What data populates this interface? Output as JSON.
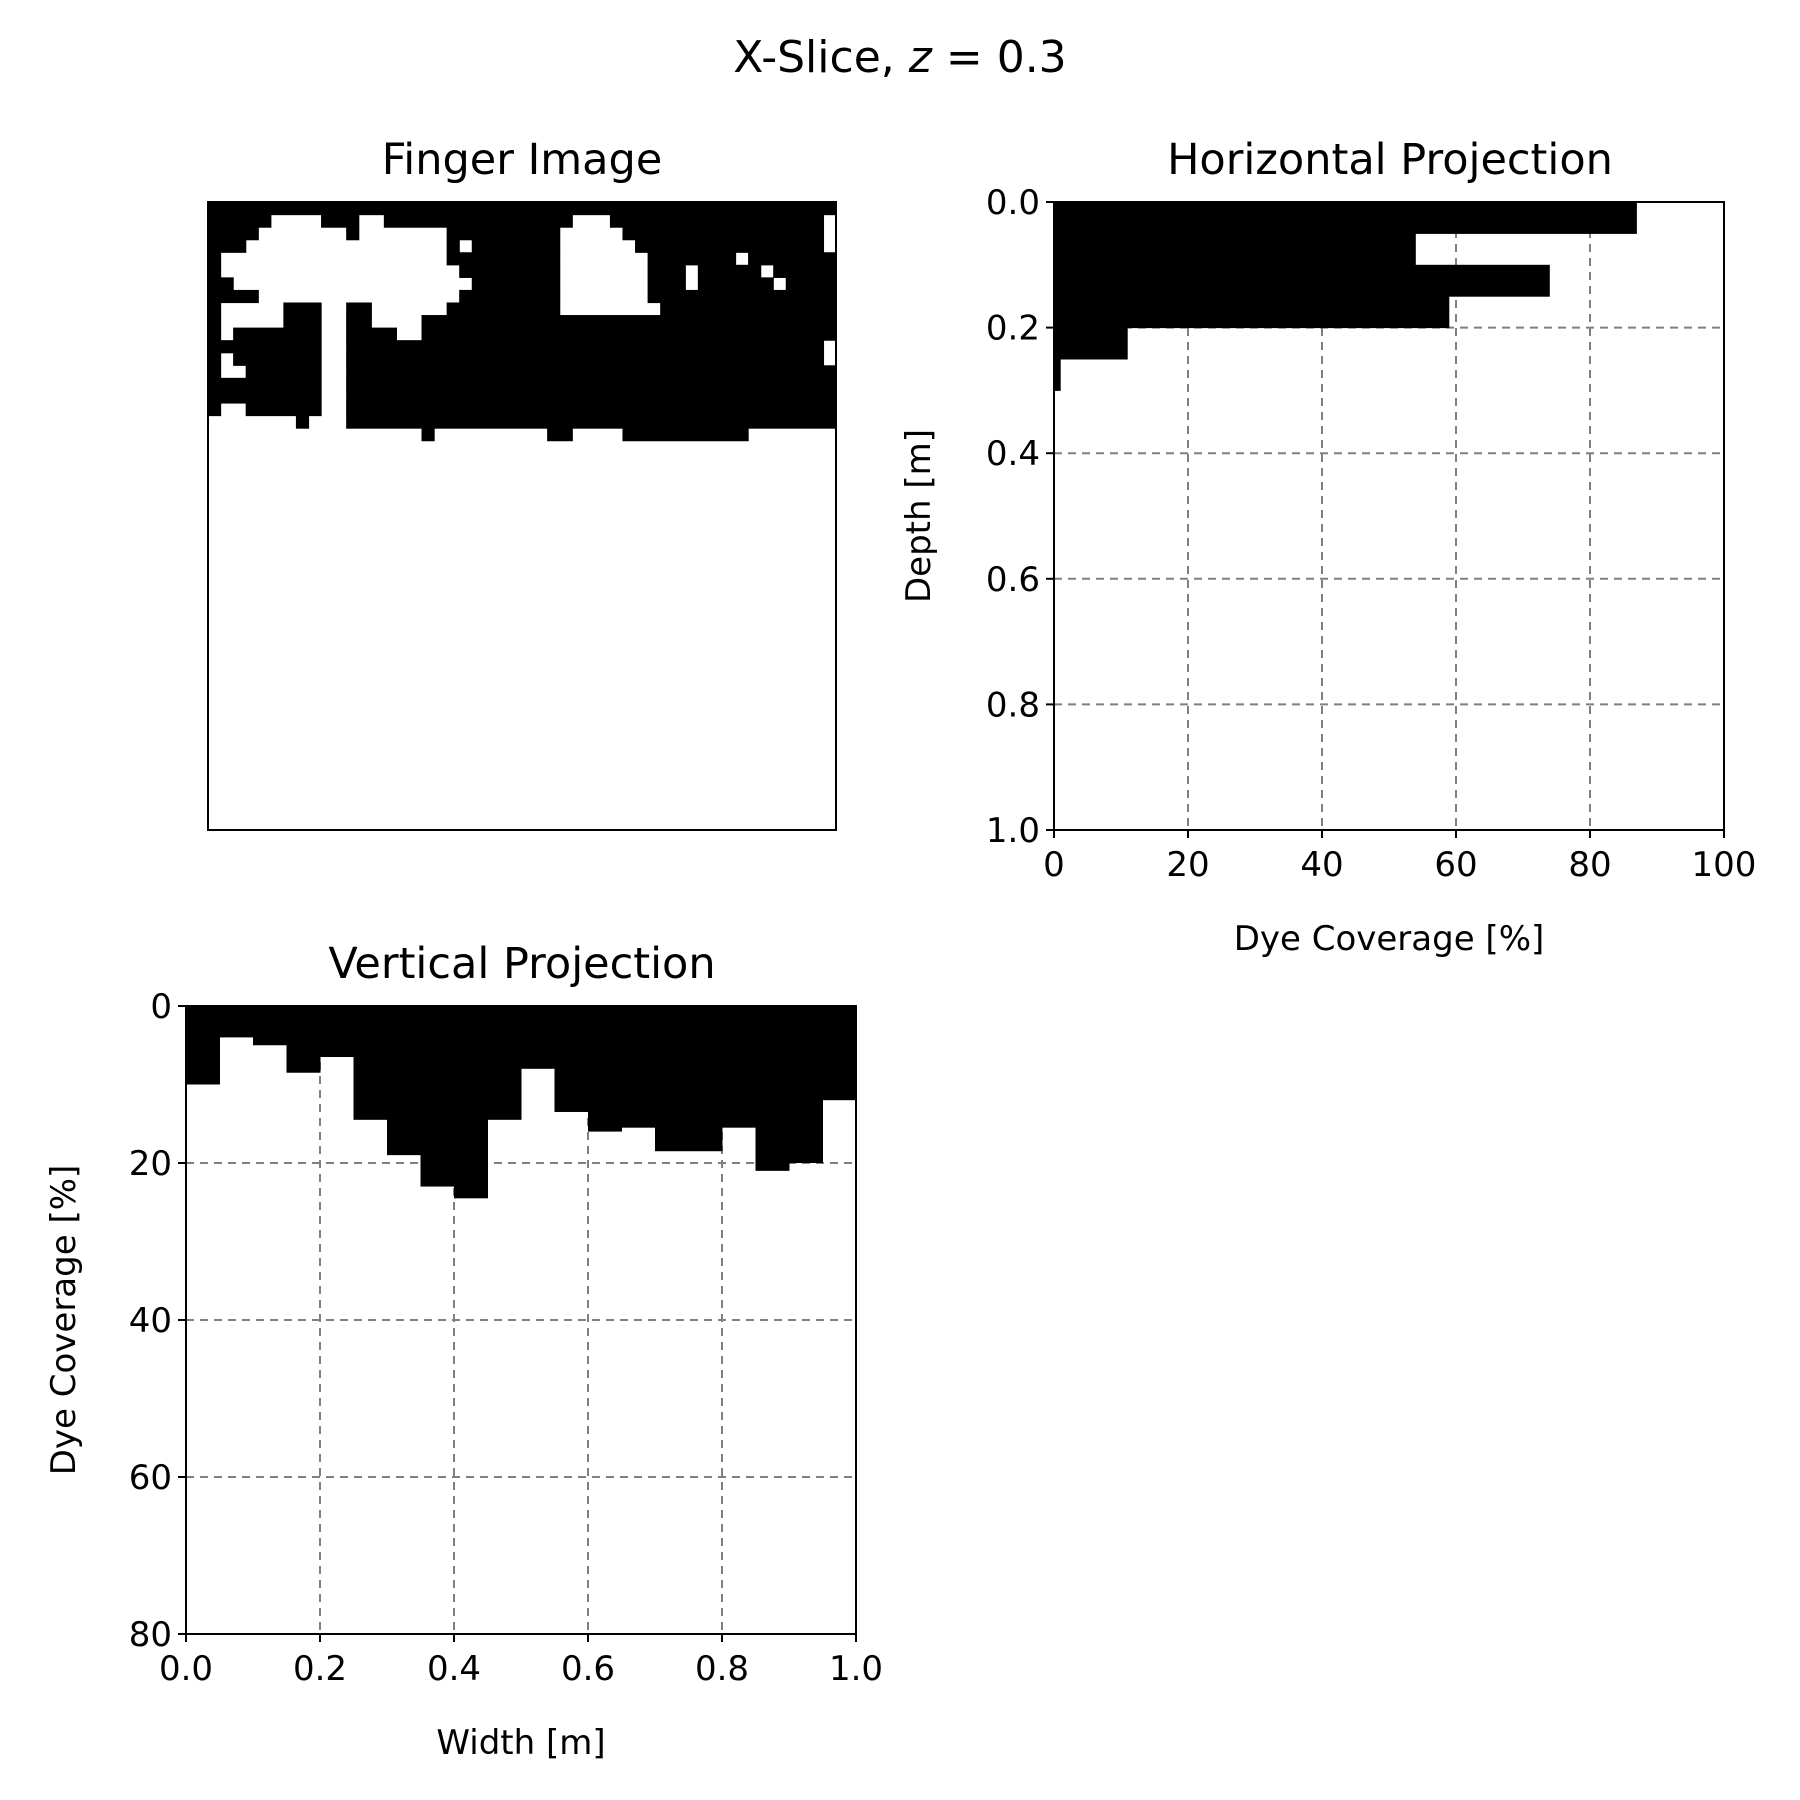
{
  "figure": {
    "suptitle_prefix": "X-Slice, ",
    "suptitle_var": "z",
    "suptitle_suffix": " = 0.3"
  },
  "chart_data": [
    {
      "type": "heatmap",
      "title": "Finger Image",
      "colors": {
        "dye": "#000000",
        "background": "#ffffff"
      },
      "axes_visible": false,
      "grid_cols": 50,
      "grid_rows": 50,
      "dye_mask_top_rows": [
        "11111111111111111111111111111111111111111111111111",
        "11111000011100111111111111111000111111111111111110",
        "11110000000100000001111111110000011111111111111110",
        "11100000000000000001011111110000001111111111111110",
        "10000000000000000001111111110000000111111101111111",
        "10000000000000000000111111110000000111011111011111",
        "11000000000000000000011111110000000111011111101111",
        "11110000000000000000111111110000000111111111111111",
        "10000011100110000001111111110000000011111111111111",
        "10000011100110000111111111111111111111111111111111",
        "10111111100111100111111111111111111111111111111111",
        "11111111100111111111111111111111111111111111111110",
        "10111111100111111111111111111111111111111111111110",
        "10011111100111111111111111111111111111111111111111",
        "11111111100111111111111111111111111111111111111111",
        "11111111100111111111111111111111111111111111111111",
        "10011111100111111111111111111111111111111111111111",
        "00000001000111111111111111111111111111111111111111",
        "00000000000000000100000000011000011111111110000000",
        "00000000000000000000000000000000000000000000000000",
        "00000000000000000000000000000000000000000000000000",
        "00000000000000000000000000000000000000000000000000",
        "00000000000000000000000000000000000000000000000000",
        "00000000000000000000000000000000000000000000000000",
        "00000000000000000000000000000000000000000000000000",
        "00000000000000000000000000000000000000000000000000"
      ]
    },
    {
      "type": "bar",
      "orientation": "horizontal",
      "title": "Horizontal Projection",
      "xlabel": "Dye Coverage [%]",
      "ylabel": "Depth [m]",
      "xlim": [
        0,
        100
      ],
      "ylim": [
        1.0,
        0.0
      ],
      "y_inverted": true,
      "xticks": [
        "0",
        "20",
        "40",
        "60",
        "80",
        "100"
      ],
      "yticks": [
        "0.0",
        "0.2",
        "0.4",
        "0.6",
        "0.8",
        "1.0"
      ],
      "grid": true,
      "bar_color": "#000000",
      "bars": [
        {
          "depth_start": 0.0,
          "depth_end": 0.05,
          "value": 87
        },
        {
          "depth_start": 0.05,
          "depth_end": 0.1,
          "value": 54
        },
        {
          "depth_start": 0.1,
          "depth_end": 0.15,
          "value": 74
        },
        {
          "depth_start": 0.15,
          "depth_end": 0.2,
          "value": 59
        },
        {
          "depth_start": 0.2,
          "depth_end": 0.25,
          "value": 11
        },
        {
          "depth_start": 0.25,
          "depth_end": 0.3,
          "value": 1
        }
      ]
    },
    {
      "type": "bar",
      "orientation": "vertical",
      "title": "Vertical Projection",
      "xlabel": "Width [m]",
      "ylabel": "Dye Coverage [%]",
      "xlim": [
        0.0,
        1.0
      ],
      "ylim": [
        80,
        0
      ],
      "y_inverted": true,
      "xticks": [
        "0.0",
        "0.2",
        "0.4",
        "0.6",
        "0.8",
        "1.0"
      ],
      "yticks": [
        "0",
        "20",
        "40",
        "60",
        "80"
      ],
      "grid": true,
      "bar_color": "#000000",
      "bars": [
        {
          "x_start": 0.0,
          "x_end": 0.05,
          "value": 10
        },
        {
          "x_start": 0.05,
          "x_end": 0.1,
          "value": 4
        },
        {
          "x_start": 0.1,
          "x_end": 0.15,
          "value": 5
        },
        {
          "x_start": 0.15,
          "x_end": 0.2,
          "value": 8.5
        },
        {
          "x_start": 0.2,
          "x_end": 0.25,
          "value": 6.5
        },
        {
          "x_start": 0.25,
          "x_end": 0.3,
          "value": 14.5
        },
        {
          "x_start": 0.3,
          "x_end": 0.35,
          "value": 19
        },
        {
          "x_start": 0.35,
          "x_end": 0.4,
          "value": 23
        },
        {
          "x_start": 0.4,
          "x_end": 0.45,
          "value": 24.5
        },
        {
          "x_start": 0.45,
          "x_end": 0.5,
          "value": 14.5
        },
        {
          "x_start": 0.5,
          "x_end": 0.55,
          "value": 8
        },
        {
          "x_start": 0.55,
          "x_end": 0.6,
          "value": 13.5
        },
        {
          "x_start": 0.6,
          "x_end": 0.65,
          "value": 16
        },
        {
          "x_start": 0.65,
          "x_end": 0.7,
          "value": 15.5
        },
        {
          "x_start": 0.7,
          "x_end": 0.75,
          "value": 18.5
        },
        {
          "x_start": 0.75,
          "x_end": 0.8,
          "value": 18.5
        },
        {
          "x_start": 0.8,
          "x_end": 0.85,
          "value": 15.5
        },
        {
          "x_start": 0.85,
          "x_end": 0.9,
          "value": 21
        },
        {
          "x_start": 0.9,
          "x_end": 0.95,
          "value": 20
        },
        {
          "x_start": 0.95,
          "x_end": 1.0,
          "value": 12
        }
      ]
    }
  ]
}
